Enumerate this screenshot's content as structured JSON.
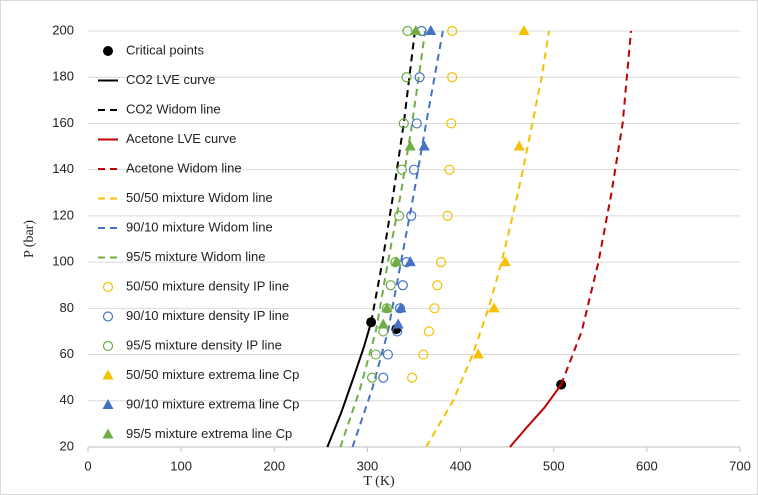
{
  "chart_data": {
    "type": "line",
    "x_label": "T (K)",
    "y_label": "P (bar)",
    "xlim": [
      0,
      700
    ],
    "xticks": [
      0,
      100,
      200,
      300,
      400,
      500,
      600,
      700
    ],
    "ylim": [
      20,
      200
    ],
    "yticks": [
      20,
      40,
      60,
      80,
      100,
      120,
      140,
      160,
      180,
      200
    ],
    "grid": true,
    "legend": "top-left",
    "series": [
      {
        "name": "Critical points",
        "color": "#000000",
        "style": "dot",
        "x": [
          304,
          331,
          508
        ],
        "values": [
          74,
          71,
          47
        ]
      },
      {
        "name": "CO2 LVE curve",
        "color": "#000000",
        "style": "solid",
        "x": [
          257,
          272,
          285,
          296,
          304
        ],
        "values": [
          20,
          35,
          50,
          63,
          74
        ]
      },
      {
        "name": "CO2 Widom line",
        "color": "#000000",
        "style": "dashed",
        "x": [
          304,
          316,
          328,
          339,
          351
        ],
        "values": [
          74,
          100,
          130,
          160,
          200
        ]
      },
      {
        "name": "Acetone LVE curve",
        "color": "#c00000",
        "style": "solid",
        "x": [
          453,
          470,
          490,
          508
        ],
        "values": [
          20,
          28,
          37,
          47
        ]
      },
      {
        "name": "Acetone Widom line",
        "color": "#c00000",
        "style": "dashed",
        "x": [
          508,
          530,
          548,
          562,
          574,
          583
        ],
        "values": [
          47,
          70,
          100,
          130,
          160,
          200
        ]
      },
      {
        "name": "50/50 mixture Widom line",
        "color": "#f5c000",
        "style": "dashed",
        "x": [
          363,
          392,
          413,
          430,
          444,
          456,
          467,
          477,
          487,
          495
        ],
        "values": [
          20,
          40,
          60,
          80,
          100,
          120,
          140,
          160,
          180,
          200
        ]
      },
      {
        "name": "90/10 mixture Widom line",
        "color": "#4472c4",
        "style": "dashed",
        "x": [
          284,
          305,
          322,
          336,
          350,
          363,
          381
        ],
        "values": [
          20,
          45,
          70,
          100,
          130,
          160,
          200
        ]
      },
      {
        "name": "95/5 mixture Widom line",
        "color": "#70ad47",
        "style": "dashed",
        "x": [
          271,
          292,
          309,
          322,
          336,
          348,
          362
        ],
        "values": [
          20,
          45,
          70,
          100,
          130,
          160,
          200
        ]
      },
      {
        "name": "50/50 mixture density IP line",
        "color": "#f5c000",
        "style": "circle",
        "x": [
          391,
          391,
          390,
          388,
          386,
          379,
          375,
          372,
          366,
          360,
          348
        ],
        "values": [
          200,
          180,
          160,
          140,
          120,
          100,
          90,
          80,
          70,
          60,
          50
        ]
      },
      {
        "name": "90/10 mixture density IP line",
        "color": "#4472c4",
        "style": "circle",
        "x": [
          358,
          356,
          353,
          350,
          347,
          342,
          338,
          335,
          332,
          322,
          317
        ],
        "values": [
          200,
          180,
          160,
          140,
          120,
          100,
          90,
          80,
          70,
          60,
          50
        ]
      },
      {
        "name": "95/5 mixture density IP line",
        "color": "#70ad47",
        "style": "circle",
        "x": [
          343,
          342,
          339,
          337,
          334,
          330,
          325,
          321,
          317,
          309,
          305
        ],
        "values": [
          200,
          180,
          160,
          140,
          120,
          100,
          90,
          80,
          70,
          60,
          50
        ]
      },
      {
        "name": "50/50 mixture extrema line Cp",
        "color": "#f5c000",
        "style": "triangle",
        "x": [
          468,
          463,
          448,
          436,
          419
        ],
        "values": [
          200,
          150,
          100,
          80,
          60
        ]
      },
      {
        "name": "90/10 mixture extrema line Cp",
        "color": "#4472c4",
        "style": "triangle",
        "x": [
          368,
          361,
          346,
          336,
          333
        ],
        "values": [
          200,
          150,
          100,
          80,
          73
        ]
      },
      {
        "name": "95/5 mixture extrema line Cp",
        "color": "#70ad47",
        "style": "triangle",
        "x": [
          352,
          346,
          331,
          321,
          317
        ],
        "values": [
          200,
          150,
          100,
          80,
          73
        ]
      }
    ]
  }
}
